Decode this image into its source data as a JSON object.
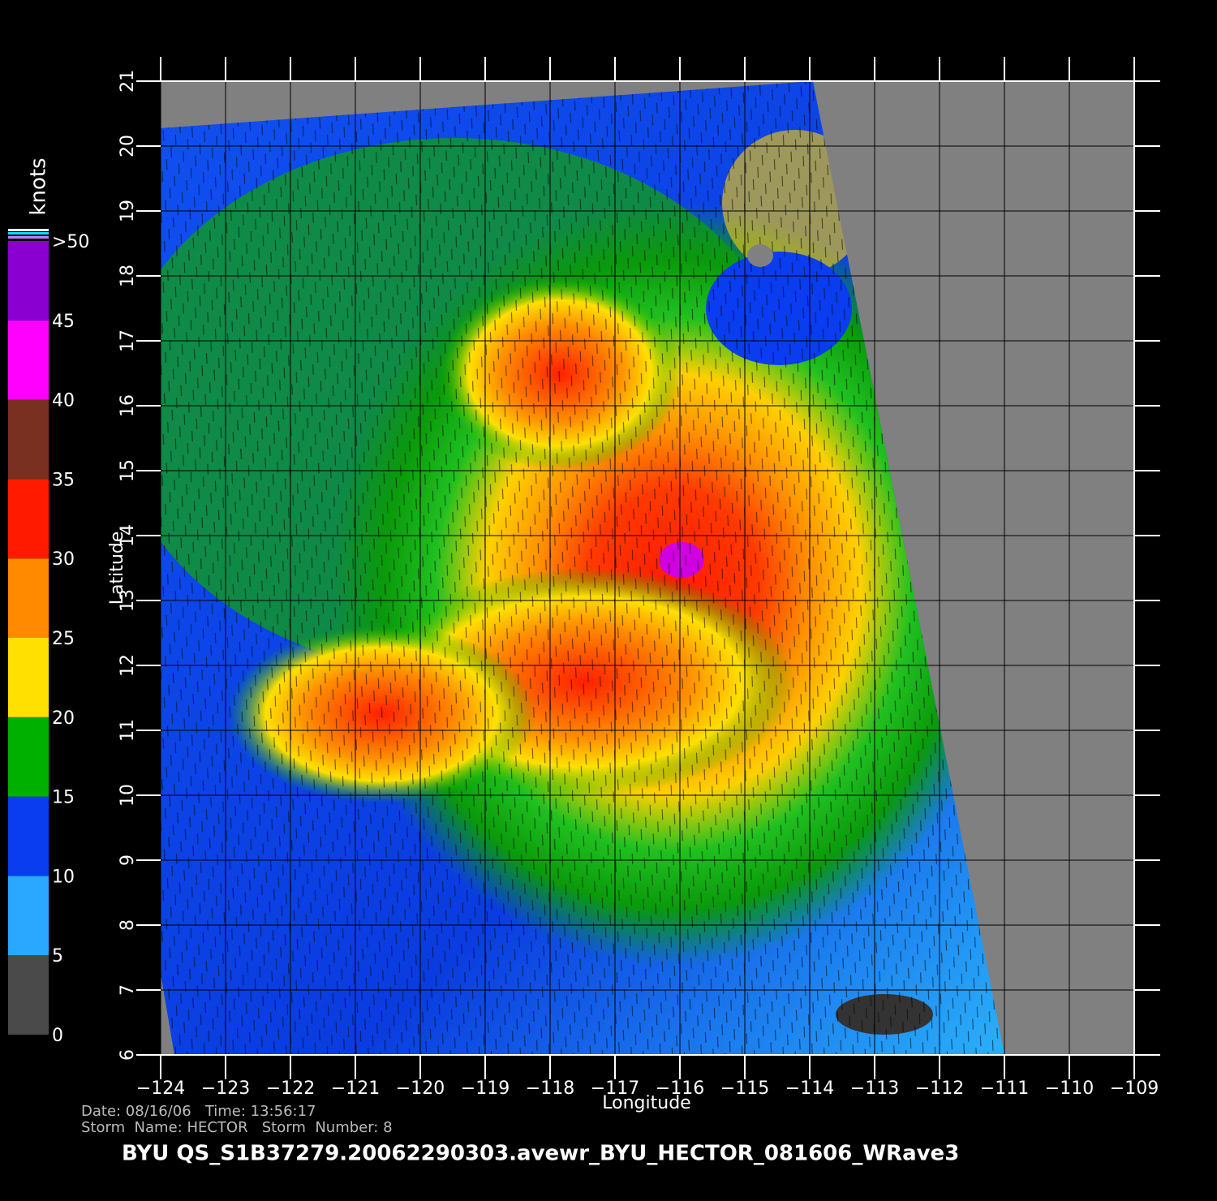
{
  "map": {
    "title": "BYU  QS_S1B37279.20062290303.avewr_BYU_HECTOR_081606_WRave3",
    "info_lines": [
      "Date: 08/16/06   Time: 13:56:17",
      "Storm  Name: HECTOR   Storm  Number: 8"
    ],
    "x_label": "Longitude",
    "y_label": "Latitude",
    "xlim": [
      -124,
      -109
    ],
    "ylim": [
      6,
      21
    ],
    "xticks": [
      {
        "value": -124,
        "label": "−124"
      },
      {
        "value": -123,
        "label": "−123"
      },
      {
        "value": -122,
        "label": "−122"
      },
      {
        "value": -121,
        "label": "−121"
      },
      {
        "value": -120,
        "label": "−120"
      },
      {
        "value": -119,
        "label": "−119"
      },
      {
        "value": -118,
        "label": "−118"
      },
      {
        "value": -117,
        "label": "−117"
      },
      {
        "value": -116,
        "label": "−116"
      },
      {
        "value": -115,
        "label": "−115"
      },
      {
        "value": -114,
        "label": "−114"
      },
      {
        "value": -113,
        "label": "−113"
      },
      {
        "value": -112,
        "label": "−112"
      },
      {
        "value": -111,
        "label": "−111"
      },
      {
        "value": -110,
        "label": "−110"
      },
      {
        "value": -109,
        "label": "−109"
      }
    ],
    "yticks": [
      6,
      7,
      8,
      9,
      10,
      11,
      12,
      13,
      14,
      15,
      16,
      17,
      18,
      19,
      20,
      21
    ],
    "colorbar": {
      "label": "knots",
      "lim": [
        0,
        50
      ],
      "ticks": [
        0,
        5,
        10,
        15,
        20,
        25,
        30,
        35,
        40,
        45,
        {
          "value": 50,
          "label": ">50"
        }
      ],
      "colors": [
        "#4a4a4a",
        "#2aa8ff",
        "#0a3cf0",
        "#00b000",
        "#ffe000",
        "#ff8a00",
        "#ff1a00",
        "#7a3020",
        "#ff00ff",
        "#8a00d0"
      ]
    }
  }
}
